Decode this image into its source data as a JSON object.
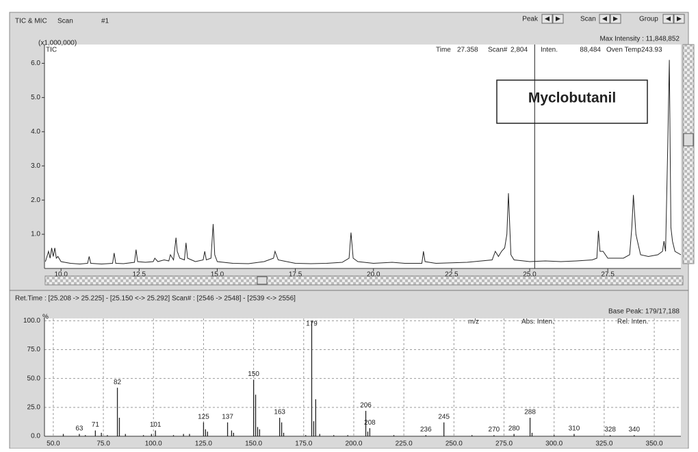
{
  "header": {
    "title": "TIC & MIC",
    "mode": "Scan",
    "number": "#1",
    "buttons": [
      "Peak",
      "Scan",
      "Group"
    ]
  },
  "chromatogram": {
    "scale_label": "(x1,000,000)",
    "trace_label": "TIC",
    "max_intensity": "Max Intensity : 11,848,852",
    "info": [
      "Time",
      "27.358",
      "Scan#",
      "2,804",
      "Inten.",
      "88,484",
      "Oven Temp243.93"
    ],
    "annotation": "Myclobutanil",
    "cursor_time": 25.16,
    "xlim": [
      9.47,
      29.84
    ],
    "ylim": [
      0,
      6.55
    ],
    "xticks": [
      {
        "value": 10,
        "label": "10.0"
      },
      {
        "value": 12.5,
        "label": "12.5"
      },
      {
        "value": 15,
        "label": "15.0"
      },
      {
        "value": 17.5,
        "label": "17.5"
      },
      {
        "value": 20,
        "label": "20.0"
      },
      {
        "value": 22.5,
        "label": "22.5"
      },
      {
        "value": 25,
        "label": "25.0"
      },
      {
        "value": 27.5,
        "label": "27.5"
      }
    ],
    "yticks": [
      {
        "value": 1,
        "label": "1.0"
      },
      {
        "value": 2,
        "label": "2.0"
      },
      {
        "value": 3,
        "label": "3.0"
      },
      {
        "value": 4,
        "label": "4.0"
      },
      {
        "value": 5,
        "label": "5.0"
      },
      {
        "value": 6,
        "label": "6.0"
      }
    ],
    "color": "#222",
    "time": [
      9.5,
      9.6,
      9.65,
      9.7,
      9.75,
      9.8,
      9.85,
      9.9,
      10.0,
      10.3,
      10.6,
      10.85,
      10.9,
      10.95,
      11.3,
      11.65,
      11.7,
      11.75,
      12.0,
      12.35,
      12.4,
      12.45,
      12.7,
      12.95,
      13.0,
      13.1,
      13.3,
      13.45,
      13.5,
      13.6,
      13.68,
      13.72,
      13.8,
      13.95,
      14.0,
      14.05,
      14.3,
      14.55,
      14.6,
      14.65,
      14.8,
      14.87,
      14.92,
      15.0,
      15.5,
      16.0,
      16.5,
      16.8,
      16.85,
      16.95,
      17.5,
      18.0,
      18.5,
      19.0,
      19.22,
      19.28,
      19.35,
      19.5,
      20.0,
      20.6,
      21.0,
      21.55,
      21.6,
      21.65,
      22.0,
      23.0,
      23.8,
      23.9,
      24.0,
      24.1,
      24.2,
      24.27,
      24.32,
      24.4,
      24.5,
      25.0,
      25.5,
      26.0,
      26.5,
      27.0,
      27.15,
      27.2,
      27.25,
      27.35,
      27.5,
      28.0,
      28.2,
      28.27,
      28.32,
      28.4,
      28.45,
      28.55,
      28.8,
      29.1,
      29.25,
      29.3,
      29.35,
      29.42,
      29.47,
      29.52,
      29.57,
      29.65,
      29.84
    ],
    "intensity": [
      0.2,
      0.5,
      0.3,
      0.6,
      0.35,
      0.6,
      0.3,
      0.35,
      0.2,
      0.15,
      0.13,
      0.15,
      0.35,
      0.15,
      0.13,
      0.15,
      0.45,
      0.15,
      0.14,
      0.18,
      0.55,
      0.2,
      0.18,
      0.2,
      0.3,
      0.2,
      0.25,
      0.22,
      0.4,
      0.25,
      0.9,
      0.5,
      0.3,
      0.25,
      0.75,
      0.3,
      0.2,
      0.25,
      0.5,
      0.25,
      0.3,
      1.3,
      0.4,
      0.2,
      0.15,
      0.14,
      0.2,
      0.3,
      0.5,
      0.25,
      0.15,
      0.14,
      0.15,
      0.18,
      0.3,
      1.05,
      0.3,
      0.2,
      0.15,
      0.18,
      0.15,
      0.15,
      0.5,
      0.2,
      0.15,
      0.18,
      0.25,
      0.5,
      0.35,
      0.5,
      0.6,
      1.0,
      2.2,
      0.4,
      0.25,
      0.2,
      0.22,
      0.2,
      0.22,
      0.25,
      0.3,
      1.1,
      0.5,
      0.5,
      0.3,
      0.3,
      0.4,
      1.2,
      2.15,
      1.0,
      0.8,
      0.4,
      0.35,
      0.4,
      0.5,
      0.8,
      0.5,
      3.6,
      6.1,
      1.2,
      0.8,
      0.5,
      0.4
    ]
  },
  "spectrum": {
    "range_text": "Ret.Time : [25.208 -> 25.225] - [25.150 <-> 25.292]  Scan# : [2546 -> 2548] - [2539 <-> 2556]",
    "base_peak": "Base Peak: 179/17,188",
    "y_unit": "%",
    "columns": [
      "m/z",
      "Abs. Inten.",
      "Rel. Inten."
    ],
    "xlim": [
      45.6,
      363.3
    ],
    "ylim": [
      0,
      102
    ],
    "xticks": [
      {
        "value": 50,
        "label": "50.0"
      },
      {
        "value": 75,
        "label": "75.0"
      },
      {
        "value": 100,
        "label": "100.0"
      },
      {
        "value": 125,
        "label": "125.0"
      },
      {
        "value": 150,
        "label": "150.0"
      },
      {
        "value": 175,
        "label": "175.0"
      },
      {
        "value": 200,
        "label": "200.0"
      },
      {
        "value": 225,
        "label": "225.0"
      },
      {
        "value": 250,
        "label": "250.0"
      },
      {
        "value": 275,
        "label": "275.0"
      },
      {
        "value": 300,
        "label": "300.0"
      },
      {
        "value": 325,
        "label": "325.0"
      },
      {
        "value": 350,
        "label": "350.0"
      }
    ],
    "yticks": [
      {
        "value": 0,
        "label": "0.0"
      },
      {
        "value": 25,
        "label": "25.0"
      },
      {
        "value": 50,
        "label": "50.0"
      },
      {
        "value": 75,
        "label": "75.0"
      },
      {
        "value": 100,
        "label": "100.0"
      }
    ],
    "grid": true,
    "color": "#222",
    "labeled_peaks": {
      "mz": [
        63,
        71,
        82,
        101,
        125,
        137,
        150,
        163,
        179,
        206,
        208,
        236,
        245,
        270,
        280,
        288,
        310,
        328,
        340
      ],
      "intensity": [
        2,
        5,
        42,
        5,
        12,
        12,
        49,
        16,
        100,
        22,
        7,
        1,
        12,
        1,
        2,
        16,
        2,
        1,
        1
      ]
    },
    "minor_peaks": {
      "mz": [
        55,
        66,
        74,
        77,
        83,
        86,
        95,
        99,
        110,
        115,
        118,
        126,
        127,
        139,
        140,
        151,
        152,
        153,
        164,
        165,
        176,
        180,
        181,
        183,
        190,
        197,
        207,
        220,
        259,
        289,
        300
      ],
      "intensity": [
        2,
        1,
        3,
        1,
        16,
        2,
        1,
        2,
        1,
        2,
        2,
        6,
        4,
        5,
        3,
        36,
        8,
        6,
        12,
        3,
        1,
        13,
        32,
        2,
        1,
        1,
        4,
        1,
        1,
        3,
        1
      ]
    }
  }
}
